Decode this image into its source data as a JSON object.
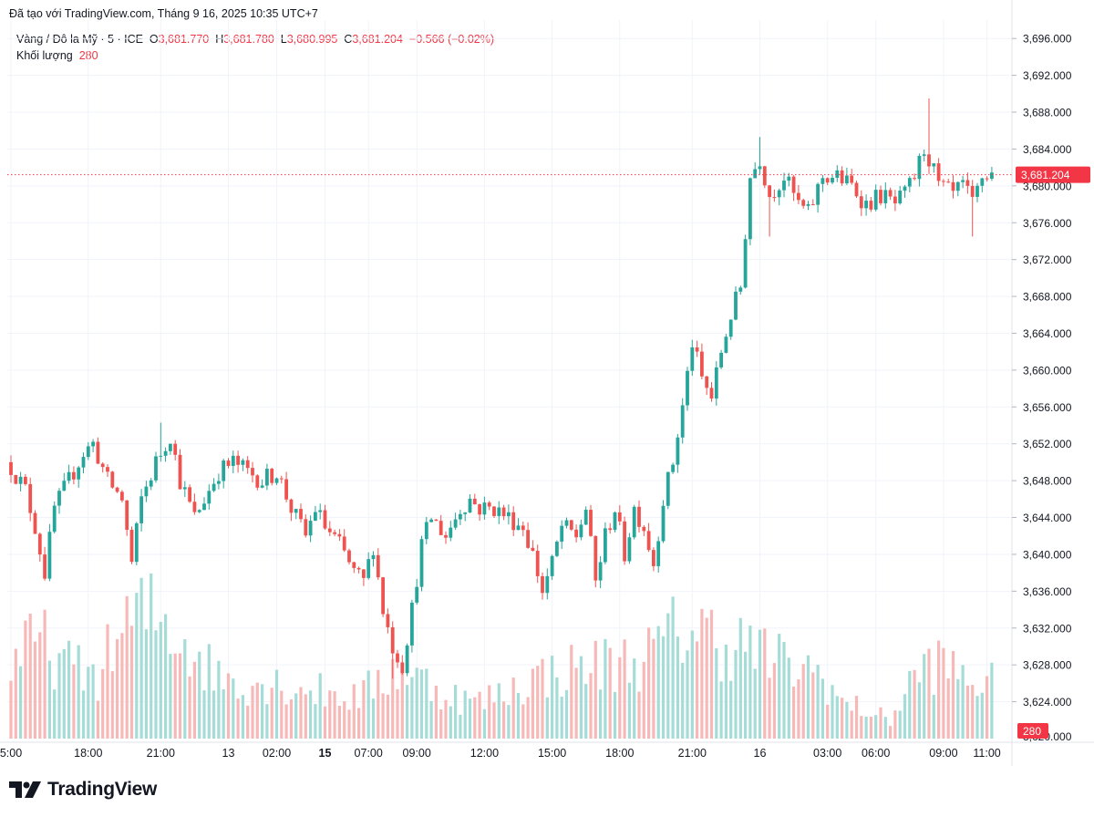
{
  "caption": "Đã tạo với TradingView.com, Tháng 9 16, 2025 10:35 UTC+7",
  "legend": {
    "symbol": "Vàng / Đô la Mỹ · 5 · ICE",
    "o_label": "O",
    "o_value": "3,681.770",
    "h_label": "H",
    "h_value": "3,681.780",
    "l_label": "L",
    "l_value": "3,680.995",
    "c_label": "C",
    "c_value": "3,681.204",
    "change": "−0.566 (−0.02%)",
    "volume_label": "Khối lượng",
    "volume_value": "280"
  },
  "logo_text": "TradingView",
  "colors": {
    "up": "#26a69a",
    "down": "#ef5350",
    "vol_up": "#a6dcd7",
    "vol_down": "#f7b9b8",
    "grid": "#f0f3fa",
    "axis_text": "#131722"
  },
  "chart_data": {
    "type": "candlestick",
    "title": "Vàng / Đô la Mỹ · 5 · ICE",
    "ylim": [
      3620,
      3698
    ],
    "y_ticks": [
      3624,
      3628,
      3632,
      3636,
      3640,
      3644,
      3648,
      3652,
      3656,
      3660,
      3664,
      3668,
      3672,
      3676,
      3680,
      3684,
      3688,
      3692,
      3696
    ],
    "y_tick_labels": [
      "3,624.000",
      "3,628.000",
      "3,632.000",
      "3,636.000",
      "3,640.000",
      "3,644.000",
      "3,648.000",
      "3,652.000",
      "3,656.000",
      "3,660.000",
      "3,664.000",
      "3,668.000",
      "3,672.000",
      "3,676.000",
      "3,680.000",
      "3,684.000",
      "3,688.000",
      "3,692.000",
      "3,696.000"
    ],
    "y_tick_cut_label": "3,620.000",
    "x_ticks": [
      {
        "label": "5:00",
        "bar": 0,
        "bold": false
      },
      {
        "label": "18:00",
        "bar": 16,
        "bold": false
      },
      {
        "label": "21:00",
        "bar": 31,
        "bold": false
      },
      {
        "label": "13",
        "bar": 45,
        "bold": false
      },
      {
        "label": "02:00",
        "bar": 55,
        "bold": false
      },
      {
        "label": "15",
        "bar": 65,
        "bold": true
      },
      {
        "label": "07:00",
        "bar": 74,
        "bold": false
      },
      {
        "label": "09:00",
        "bar": 84,
        "bold": false
      },
      {
        "label": "12:00",
        "bar": 98,
        "bold": false
      },
      {
        "label": "15:00",
        "bar": 112,
        "bold": false
      },
      {
        "label": "18:00",
        "bar": 126,
        "bold": false
      },
      {
        "label": "21:00",
        "bar": 141,
        "bold": false
      },
      {
        "label": "16",
        "bar": 155,
        "bold": false
      },
      {
        "label": "03:00",
        "bar": 169,
        "bold": false
      },
      {
        "label": "06:00",
        "bar": 179,
        "bold": false
      },
      {
        "label": "09:00",
        "bar": 193,
        "bold": false
      },
      {
        "label": "11:00",
        "bar": 202,
        "bold": false
      }
    ],
    "last_price": 3681.204,
    "last_price_label": "3,681.204",
    "last_volume_label": "280",
    "close_path": [
      [
        0,
        3649.5
      ],
      [
        3,
        3647
      ],
      [
        5,
        3643
      ],
      [
        7,
        3638
      ],
      [
        9,
        3645
      ],
      [
        12,
        3648
      ],
      [
        15,
        3651
      ],
      [
        17,
        3652
      ],
      [
        20,
        3648
      ],
      [
        23,
        3646
      ],
      [
        25,
        3639
      ],
      [
        27,
        3646
      ],
      [
        30,
        3650
      ],
      [
        33,
        3653
      ],
      [
        35,
        3648
      ],
      [
        38,
        3644
      ],
      [
        40,
        3646
      ],
      [
        43,
        3649
      ],
      [
        46,
        3650
      ],
      [
        49,
        3649
      ],
      [
        52,
        3648
      ],
      [
        55,
        3649
      ],
      [
        58,
        3645
      ],
      [
        61,
        3642
      ],
      [
        63,
        3645
      ],
      [
        65,
        3643
      ],
      [
        68,
        3641
      ],
      [
        71,
        3638
      ],
      [
        73,
        3637
      ],
      [
        75,
        3641
      ],
      [
        77,
        3634
      ],
      [
        79,
        3630
      ],
      [
        81,
        3628
      ],
      [
        83,
        3634
      ],
      [
        85,
        3641
      ],
      [
        87,
        3644
      ],
      [
        90,
        3642
      ],
      [
        93,
        3645
      ],
      [
        95,
        3646
      ],
      [
        97,
        3645
      ],
      [
        100,
        3645
      ],
      [
        103,
        3644
      ],
      [
        106,
        3643
      ],
      [
        108,
        3640
      ],
      [
        110,
        3636
      ],
      [
        112,
        3639
      ],
      [
        114,
        3643
      ],
      [
        117,
        3642
      ],
      [
        119,
        3645
      ],
      [
        121,
        3637
      ],
      [
        123,
        3642
      ],
      [
        125,
        3645
      ],
      [
        127,
        3640
      ],
      [
        129,
        3645
      ],
      [
        131,
        3643
      ],
      [
        133,
        3639
      ],
      [
        135,
        3646
      ],
      [
        137,
        3650
      ],
      [
        139,
        3656
      ],
      [
        141,
        3663
      ],
      [
        143,
        3659
      ],
      [
        145,
        3657
      ],
      [
        147,
        3662
      ],
      [
        149,
        3666
      ],
      [
        151,
        3669
      ],
      [
        152,
        3675
      ],
      [
        153,
        3681
      ],
      [
        155,
        3683
      ],
      [
        157,
        3679
      ],
      [
        160,
        3681
      ],
      [
        163,
        3678
      ],
      [
        165,
        3677
      ],
      [
        168,
        3681
      ],
      [
        171,
        3681
      ],
      [
        174,
        3680
      ],
      [
        177,
        3678
      ],
      [
        180,
        3679
      ],
      [
        183,
        3678
      ],
      [
        185,
        3679
      ],
      [
        187,
        3681
      ],
      [
        189,
        3684
      ],
      [
        190,
        3683
      ],
      [
        192,
        3680
      ],
      [
        195,
        3679
      ],
      [
        197,
        3680
      ],
      [
        199,
        3678
      ],
      [
        201,
        3681
      ],
      [
        203,
        3681.2
      ]
    ],
    "spikes": [
      {
        "bar": 190,
        "high": 3689.5
      },
      {
        "bar": 155,
        "high": 3685.3
      },
      {
        "bar": 79,
        "low": 3626.5
      },
      {
        "bar": 157,
        "low": 3674.5
      },
      {
        "bar": 199,
        "low": 3674.5
      },
      {
        "bar": 31,
        "high": 3654.3
      }
    ],
    "volume": {
      "ylim": [
        0,
        2000
      ],
      "levels": [
        [
          0,
          700
        ],
        [
          6,
          900
        ],
        [
          12,
          650
        ],
        [
          18,
          600
        ],
        [
          24,
          1050
        ],
        [
          28,
          1150
        ],
        [
          33,
          1050
        ],
        [
          38,
          800
        ],
        [
          42,
          600
        ],
        [
          48,
          520
        ],
        [
          54,
          520
        ],
        [
          60,
          470
        ],
        [
          66,
          420
        ],
        [
          72,
          380
        ],
        [
          76,
          520
        ],
        [
          80,
          650
        ],
        [
          84,
          560
        ],
        [
          90,
          420
        ],
        [
          96,
          330
        ],
        [
          102,
          420
        ],
        [
          108,
          560
        ],
        [
          114,
          620
        ],
        [
          120,
          680
        ],
        [
          126,
          700
        ],
        [
          132,
          760
        ],
        [
          136,
          920
        ],
        [
          140,
          1050
        ],
        [
          144,
          960
        ],
        [
          148,
          880
        ],
        [
          152,
          860
        ],
        [
          156,
          760
        ],
        [
          162,
          650
        ],
        [
          168,
          600
        ],
        [
          172,
          320
        ],
        [
          176,
          280
        ],
        [
          182,
          170
        ],
        [
          186,
          500
        ],
        [
          190,
          700
        ],
        [
          194,
          650
        ],
        [
          198,
          550
        ],
        [
          203,
          500
        ]
      ]
    }
  }
}
